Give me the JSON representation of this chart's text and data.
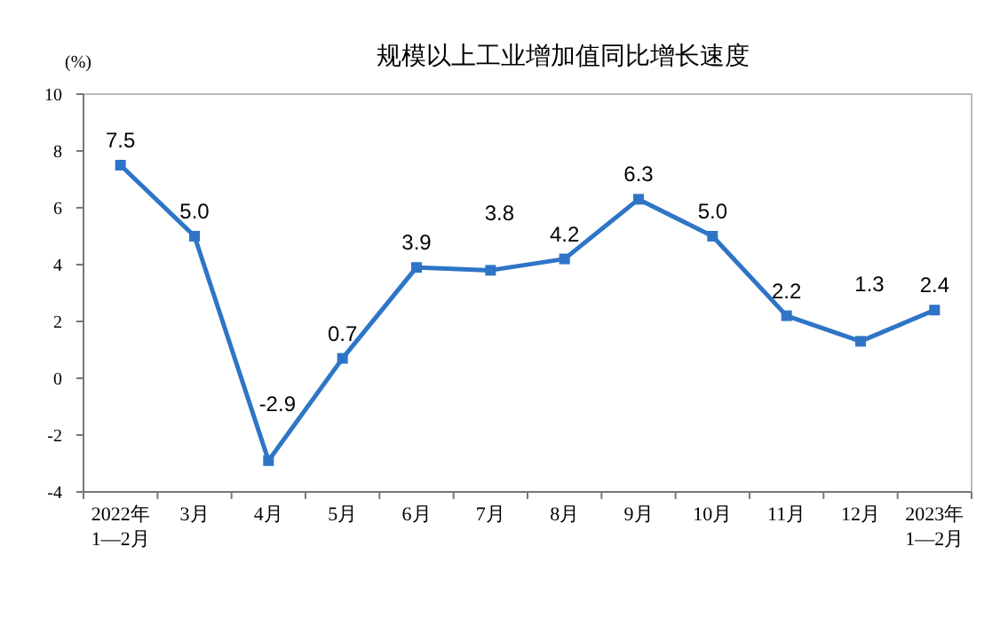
{
  "chart_data": {
    "type": "line",
    "title": "规模以上工业增加值同比增长速度",
    "ylabel": "(%)",
    "categories": [
      "2022年\n1—2月",
      "3月",
      "4月",
      "5月",
      "6月",
      "7月",
      "8月",
      "9月",
      "10月",
      "11月",
      "12月",
      "2023年\n1—2月"
    ],
    "values": [
      7.5,
      5.0,
      -2.9,
      0.7,
      3.9,
      3.8,
      4.2,
      6.3,
      5.0,
      2.2,
      1.3,
      2.4
    ],
    "color": "#2e75c7",
    "ylim": [
      -4,
      10
    ],
    "yticks": [
      -4,
      -2,
      0,
      2,
      4,
      6,
      8,
      10
    ],
    "grid": false,
    "marker": "square",
    "line_style": "solid",
    "value_labels": [
      "7.5",
      "5.0",
      "-2.9",
      "0.7",
      "3.9",
      "3.8",
      "4.2",
      "6.3",
      "5.0",
      "2.2",
      "1.3",
      "2.4"
    ]
  }
}
